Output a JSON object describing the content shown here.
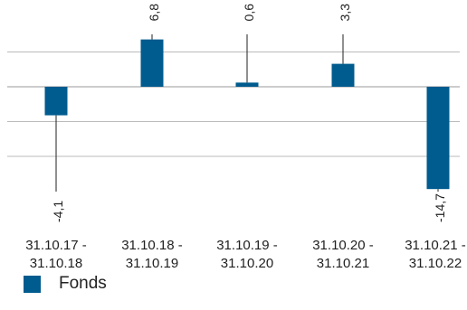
{
  "chart_data": {
    "type": "bar",
    "categories": [
      "31.10.17 - 31.10.18",
      "31.10.18 - 31.10.19",
      "31.10.19 - 31.10.20",
      "31.10.20 - 31.10.21",
      "31.10.21 - 31.10.22"
    ],
    "category_lines": [
      [
        "31.10.17 -",
        "31.10.18"
      ],
      [
        "31.10.18 -",
        "31.10.19"
      ],
      [
        "31.10.19 -",
        "31.10.20"
      ],
      [
        "31.10.20 -",
        "31.10.21"
      ],
      [
        "31.10.21 -",
        "31.10.22"
      ]
    ],
    "series": [
      {
        "name": "Fonds",
        "values": [
          -4.1,
          6.8,
          0.6,
          3.3,
          -14.7
        ],
        "color": "#005b8e"
      }
    ],
    "data_labels": [
      "-4,1",
      "6,8",
      "0,6",
      "3,3",
      "-14,7"
    ],
    "gridlines_at": [
      5,
      0,
      -5,
      -10
    ],
    "ylim": [
      -15,
      12
    ],
    "grid": true,
    "legend": "bottom-left"
  },
  "legend": {
    "label": "Fonds",
    "color": "#005b8e"
  }
}
